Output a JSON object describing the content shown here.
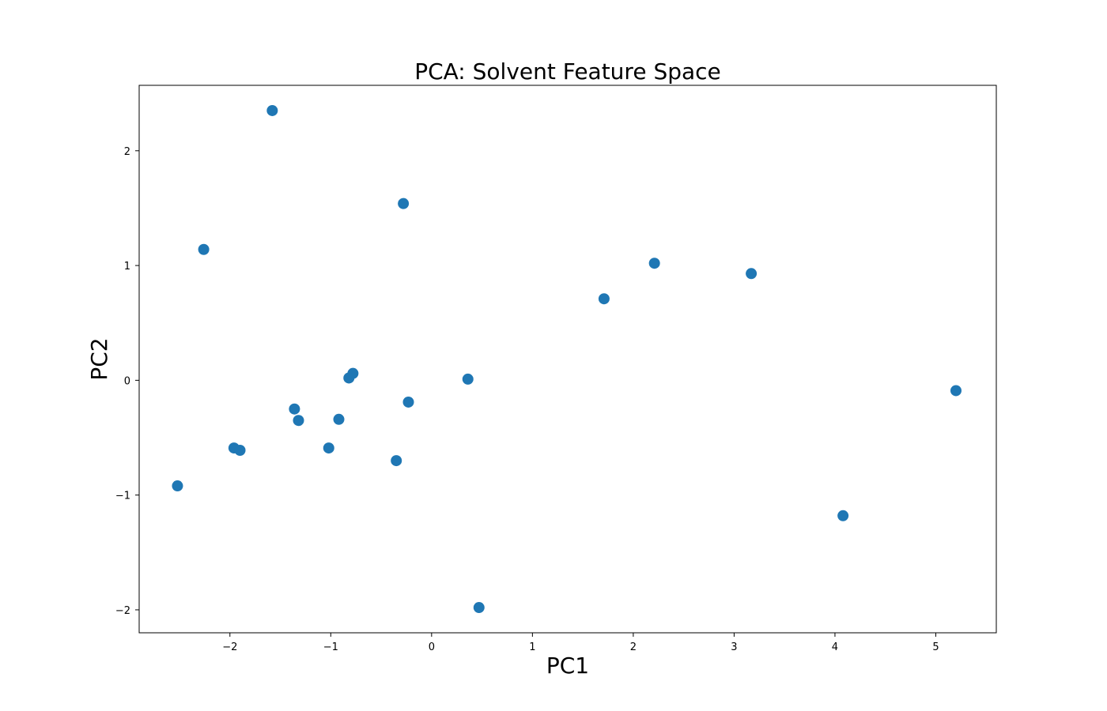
{
  "chart_data": {
    "type": "scatter",
    "title": "PCA: Solvent Feature Space",
    "xlabel": "PC1",
    "ylabel": "PC2",
    "xlim": [
      -2.9,
      5.6
    ],
    "ylim": [
      -2.2,
      2.57
    ],
    "xticks": [
      -2,
      -1,
      0,
      1,
      2,
      3,
      4,
      5
    ],
    "yticks": [
      -2,
      -1,
      0,
      1,
      2
    ],
    "grid": false,
    "series": [
      {
        "color": "#1f77b4",
        "x": [
          -1.58,
          -0.28,
          -2.26,
          2.21,
          3.17,
          1.71,
          -0.78,
          -0.82,
          0.36,
          -0.23,
          -1.36,
          -1.32,
          -0.92,
          -1.96,
          -1.9,
          -1.02,
          -0.35,
          -2.52,
          4.08,
          5.2,
          0.47
        ],
        "y": [
          2.35,
          1.54,
          1.14,
          1.02,
          0.93,
          0.71,
          0.06,
          0.02,
          0.01,
          -0.19,
          -0.25,
          -0.35,
          -0.34,
          -0.59,
          -0.61,
          -0.59,
          -0.7,
          -0.92,
          -1.18,
          -0.09,
          -1.98
        ]
      }
    ]
  }
}
